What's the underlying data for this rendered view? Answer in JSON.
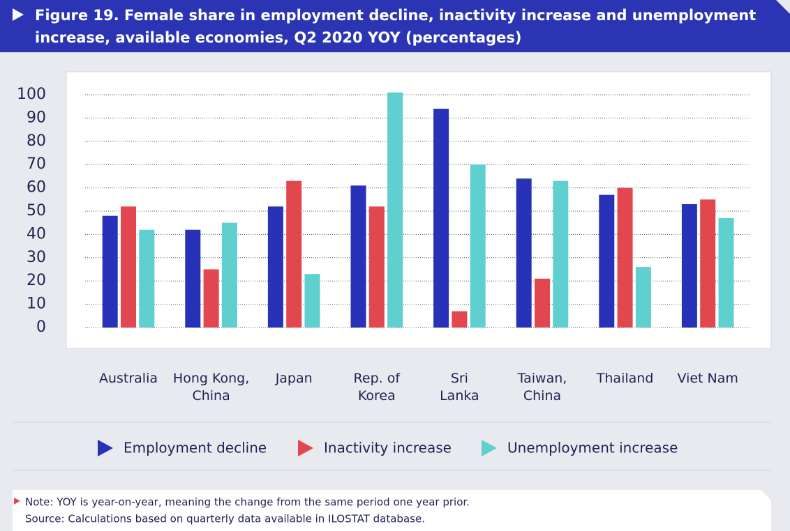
{
  "chart_data": {
    "type": "bar",
    "title": "Figure 19. Female share in employment decline, inactivity increase and unemployment\nincrease, available economies, Q2 2020 YOY (percentages)",
    "categories": [
      "Australia",
      "Hong Kong,\nChina",
      "Japan",
      "Rep. of\nKorea",
      "Sri\nLanka",
      "Taiwan,\nChina",
      "Thailand",
      "Viet Nam"
    ],
    "series": [
      {
        "name": "Employment decline",
        "color": "#2832b8",
        "values": [
          48,
          42,
          52,
          61,
          94,
          64,
          57,
          53
        ]
      },
      {
        "name": "Inactivity increase",
        "color": "#e2474f",
        "values": [
          52,
          25,
          63,
          52,
          7,
          21,
          60,
          55
        ]
      },
      {
        "name": "Unemployment increase",
        "color": "#5fcfcf",
        "values": [
          42,
          45,
          23,
          101,
          70,
          63,
          26,
          47
        ]
      }
    ],
    "ylim": [
      0,
      100
    ],
    "yticks": [
      0,
      10,
      20,
      30,
      40,
      50,
      60,
      70,
      80,
      90,
      100
    ],
    "grid": true,
    "note": "Note: YOY is year-on-year, meaning the change from the same period one year prior.",
    "source": "Source: Calculations based on quarterly data available in ILOSTAT database."
  }
}
